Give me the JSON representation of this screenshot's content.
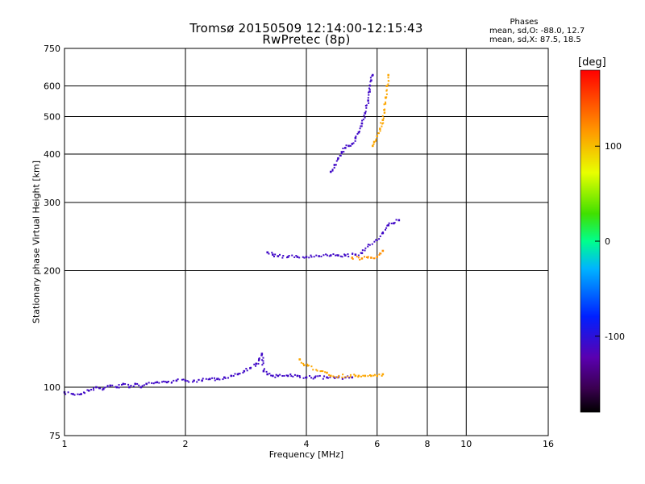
{
  "chart_data": {
    "type": "scatter",
    "title": "Tromsø 20150509 12:14:00-12:15:43",
    "subtitle": "RwPretec (8p)",
    "xlabel": "Frequency [MHz]",
    "ylabel": "Stationary phase Virtual Height [km]",
    "xscale": "log",
    "yscale": "log",
    "xlim": [
      1,
      16
    ],
    "ylim": [
      75,
      750
    ],
    "x_ticks": [
      1,
      2,
      4,
      6,
      8,
      10,
      16
    ],
    "x_tick_labels": [
      "1",
      "2",
      "4",
      "6",
      "8",
      "10",
      "16"
    ],
    "y_ticks": [
      75,
      100,
      200,
      300,
      400,
      500,
      600,
      750
    ],
    "y_tick_labels": [
      "75",
      "100",
      "200",
      "300",
      "400",
      "500",
      "600",
      "750"
    ],
    "grid": true,
    "colorbar": {
      "label": "[deg]",
      "range": [
        -180,
        180
      ],
      "ticks": [
        100,
        0,
        -100
      ],
      "tick_labels": [
        "100",
        "0",
        "-100"
      ],
      "colormap": "rainbow (black-violet-blue-cyan-green-yellow-red)"
    },
    "phase_stats": {
      "heading": "Phases",
      "line1": "mean, sd,O:  -88.0,  12.7",
      "line2": "mean, sd,X:   87.5,  18.5"
    },
    "series": [
      {
        "note": "E-layer trace, blue",
        "points": [
          [
            1.0,
            97
          ],
          [
            1.05,
            96
          ],
          [
            1.1,
            96
          ],
          [
            1.15,
            98
          ],
          [
            1.2,
            100
          ],
          [
            1.25,
            99
          ],
          [
            1.3,
            101
          ],
          [
            1.35,
            100
          ],
          [
            1.4,
            102
          ],
          [
            1.45,
            100
          ],
          [
            1.5,
            102
          ],
          [
            1.55,
            100
          ],
          [
            1.6,
            102
          ],
          [
            1.7,
            103
          ],
          [
            1.8,
            103
          ],
          [
            1.9,
            104
          ],
          [
            2.0,
            104
          ],
          [
            2.1,
            104
          ],
          [
            2.2,
            104
          ],
          [
            2.3,
            105
          ],
          [
            2.4,
            105
          ],
          [
            2.5,
            106
          ],
          [
            2.6,
            107
          ],
          [
            2.7,
            108
          ],
          [
            2.8,
            110
          ],
          [
            2.9,
            112
          ],
          [
            3.0,
            115
          ],
          [
            3.05,
            118
          ],
          [
            3.1,
            122
          ],
          [
            3.13,
            110
          ],
          [
            3.2,
            108
          ],
          [
            3.3,
            107
          ],
          [
            3.4,
            107
          ],
          [
            3.6,
            107
          ],
          [
            3.8,
            107
          ],
          [
            4.0,
            106
          ],
          [
            4.2,
            106
          ],
          [
            4.5,
            106
          ],
          [
            4.8,
            106
          ],
          [
            5.0,
            106
          ],
          [
            5.2,
            106
          ]
        ],
        "phase": -110
      },
      {
        "note": "E-layer trace, yellow",
        "points": [
          [
            3.85,
            118
          ],
          [
            3.95,
            114
          ],
          [
            4.5,
            109
          ],
          [
            4.6,
            107
          ],
          [
            5.3,
            107
          ],
          [
            5.4,
            107
          ],
          [
            5.6,
            107
          ],
          [
            5.8,
            107
          ],
          [
            6.0,
            107
          ],
          [
            6.2,
            108
          ]
        ],
        "phase": 110
      },
      {
        "note": "F-layer trace, blue",
        "points": [
          [
            3.2,
            223
          ],
          [
            3.3,
            220
          ],
          [
            3.4,
            218
          ],
          [
            3.6,
            217
          ],
          [
            3.8,
            217
          ],
          [
            4.0,
            217
          ],
          [
            4.3,
            218
          ],
          [
            4.6,
            219
          ],
          [
            4.8,
            219
          ],
          [
            5.0,
            219
          ],
          [
            5.3,
            220
          ],
          [
            5.5,
            222
          ],
          [
            6.2,
            250
          ],
          [
            6.4,
            262
          ],
          [
            6.6,
            265
          ],
          [
            6.8,
            270
          ]
        ],
        "phase": -110
      },
      {
        "note": "F-layer trace, yellow",
        "points": [
          [
            5.2,
            216
          ],
          [
            5.5,
            215
          ],
          [
            5.8,
            216
          ],
          [
            6.0,
            217
          ],
          [
            6.2,
            225
          ]
        ],
        "phase": 120
      },
      {
        "note": "F2 trace, blue",
        "points": [
          [
            4.6,
            360
          ],
          [
            4.7,
            375
          ],
          [
            4.8,
            390
          ],
          [
            4.9,
            405
          ],
          [
            5.0,
            415
          ],
          [
            5.1,
            420
          ],
          [
            5.2,
            425
          ],
          [
            5.3,
            440
          ],
          [
            5.4,
            455
          ],
          [
            5.5,
            480
          ],
          [
            5.6,
            510
          ],
          [
            5.7,
            550
          ],
          [
            5.75,
            580
          ],
          [
            5.8,
            620
          ],
          [
            5.85,
            640
          ]
        ],
        "phase": -110
      },
      {
        "note": "F2 trace, yellow",
        "points": [
          [
            5.85,
            420
          ],
          [
            5.9,
            430
          ],
          [
            6.0,
            445
          ],
          [
            6.1,
            465
          ],
          [
            6.2,
            490
          ],
          [
            6.25,
            520
          ],
          [
            6.3,
            560
          ],
          [
            6.35,
            600
          ],
          [
            6.4,
            640
          ]
        ],
        "phase": 110
      }
    ]
  }
}
